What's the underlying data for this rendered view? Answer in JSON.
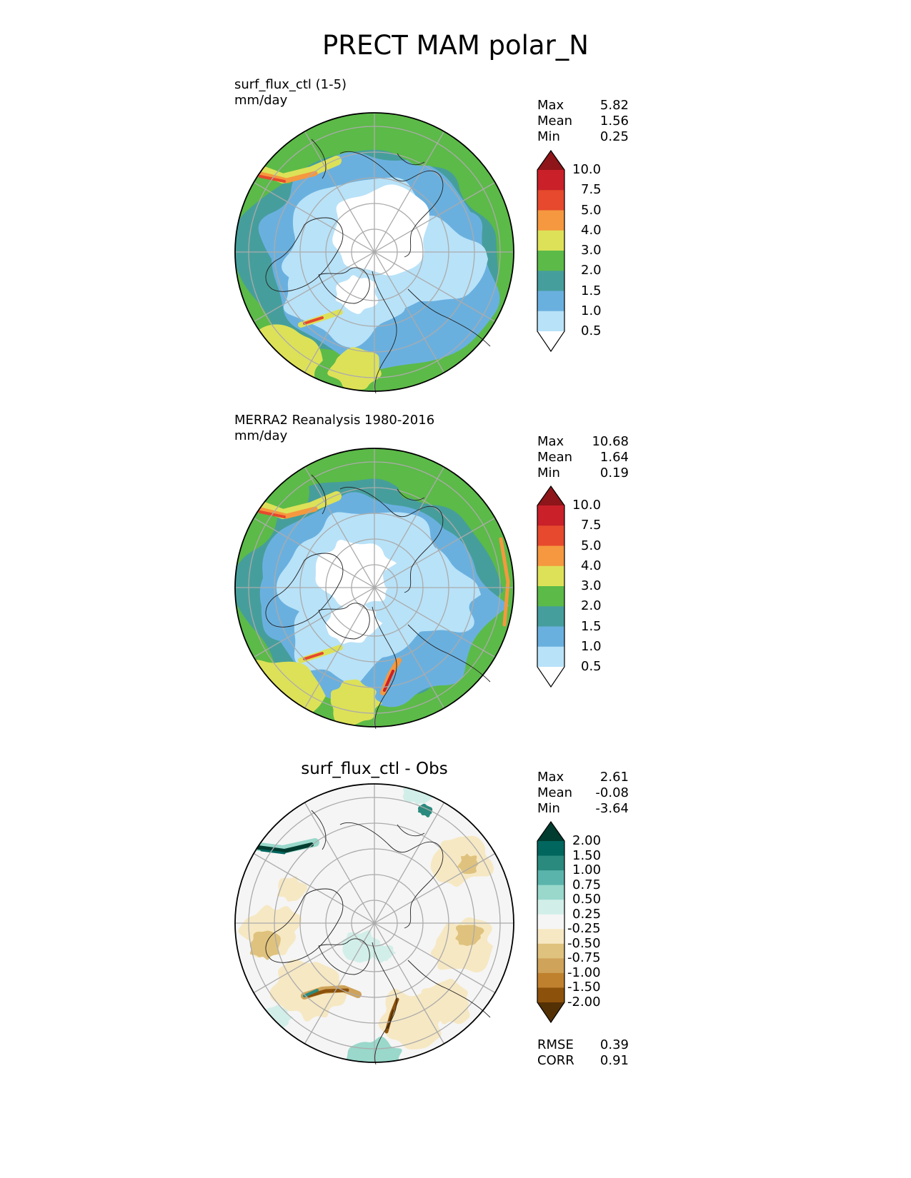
{
  "title": "PRECT MAM polar_N",
  "panels": [
    {
      "id": "test",
      "subtitle_lines": [
        "surf_flux_ctl (1-5)",
        "mm/day"
      ],
      "stats": [
        {
          "label": "Max",
          "value": "5.82"
        },
        {
          "label": "Mean",
          "value": "1.56"
        },
        {
          "label": "Min",
          "value": "0.25"
        }
      ]
    },
    {
      "id": "ref",
      "subtitle_lines": [
        "MERRA2 Reanalysis 1980-2016",
        "mm/day"
      ],
      "stats": [
        {
          "label": "Max",
          "value": "10.68"
        },
        {
          "label": "Mean",
          "value": "1.64"
        },
        {
          "label": "Min",
          "value": "0.19"
        }
      ]
    },
    {
      "id": "diff",
      "title": "surf_flux_ctl - Obs",
      "stats": [
        {
          "label": "Max",
          "value": "2.61"
        },
        {
          "label": "Mean",
          "value": "-0.08"
        },
        {
          "label": "Min",
          "value": "-3.64"
        }
      ],
      "metrics": [
        {
          "label": "RMSE",
          "value": "0.39"
        },
        {
          "label": "CORR",
          "value": "0.91"
        }
      ]
    }
  ],
  "chart_data": [
    {
      "type": "heatmap",
      "projection": "north polar stereographic",
      "title": "surf_flux_ctl (1-5)",
      "units": "mm/day",
      "colorbar": {
        "levels": [
          "0.5",
          "1.0",
          "1.5",
          "2.0",
          "3.0",
          "4.0",
          "5.0",
          "7.5",
          "10.0"
        ],
        "colors": [
          "#ffffff",
          "#b8e2f8",
          "#6ab0df",
          "#469e9c",
          "#5cba48",
          "#dde158",
          "#f5983f",
          "#e6492d",
          "#c9202a",
          "#8e1519"
        ],
        "extend": "both"
      },
      "stats": {
        "max": 5.82,
        "mean": 1.56,
        "min": 0.25
      }
    },
    {
      "type": "heatmap",
      "projection": "north polar stereographic",
      "title": "MERRA2 Reanalysis 1980-2016",
      "units": "mm/day",
      "colorbar": {
        "levels": [
          "0.5",
          "1.0",
          "1.5",
          "2.0",
          "3.0",
          "4.0",
          "5.0",
          "7.5",
          "10.0"
        ],
        "colors": [
          "#ffffff",
          "#b8e2f8",
          "#6ab0df",
          "#469e9c",
          "#5cba48",
          "#dde158",
          "#f5983f",
          "#e6492d",
          "#c9202a",
          "#8e1519"
        ],
        "extend": "both"
      },
      "stats": {
        "max": 10.68,
        "mean": 1.64,
        "min": 0.19
      }
    },
    {
      "type": "heatmap",
      "projection": "north polar stereographic",
      "title": "surf_flux_ctl - Obs",
      "colorbar": {
        "levels": [
          "-2.00",
          "-1.50",
          "-1.00",
          "-0.75",
          "-0.50",
          "-0.25",
          "0.25",
          "0.50",
          "0.75",
          "1.00",
          "1.50",
          "2.00"
        ],
        "colors": [
          "#543005",
          "#8c510a",
          "#bf812d",
          "#cfa35a",
          "#dfc27d",
          "#f6e8c3",
          "#f5f5f5",
          "#d2eee9",
          "#99d8cb",
          "#5ab4ac",
          "#2a8a7e",
          "#01665e",
          "#003c30"
        ],
        "extend": "both"
      },
      "stats": {
        "max": 2.61,
        "mean": -0.08,
        "min": -3.64
      },
      "metrics": {
        "rmse": 0.39,
        "corr": 0.91
      }
    }
  ]
}
